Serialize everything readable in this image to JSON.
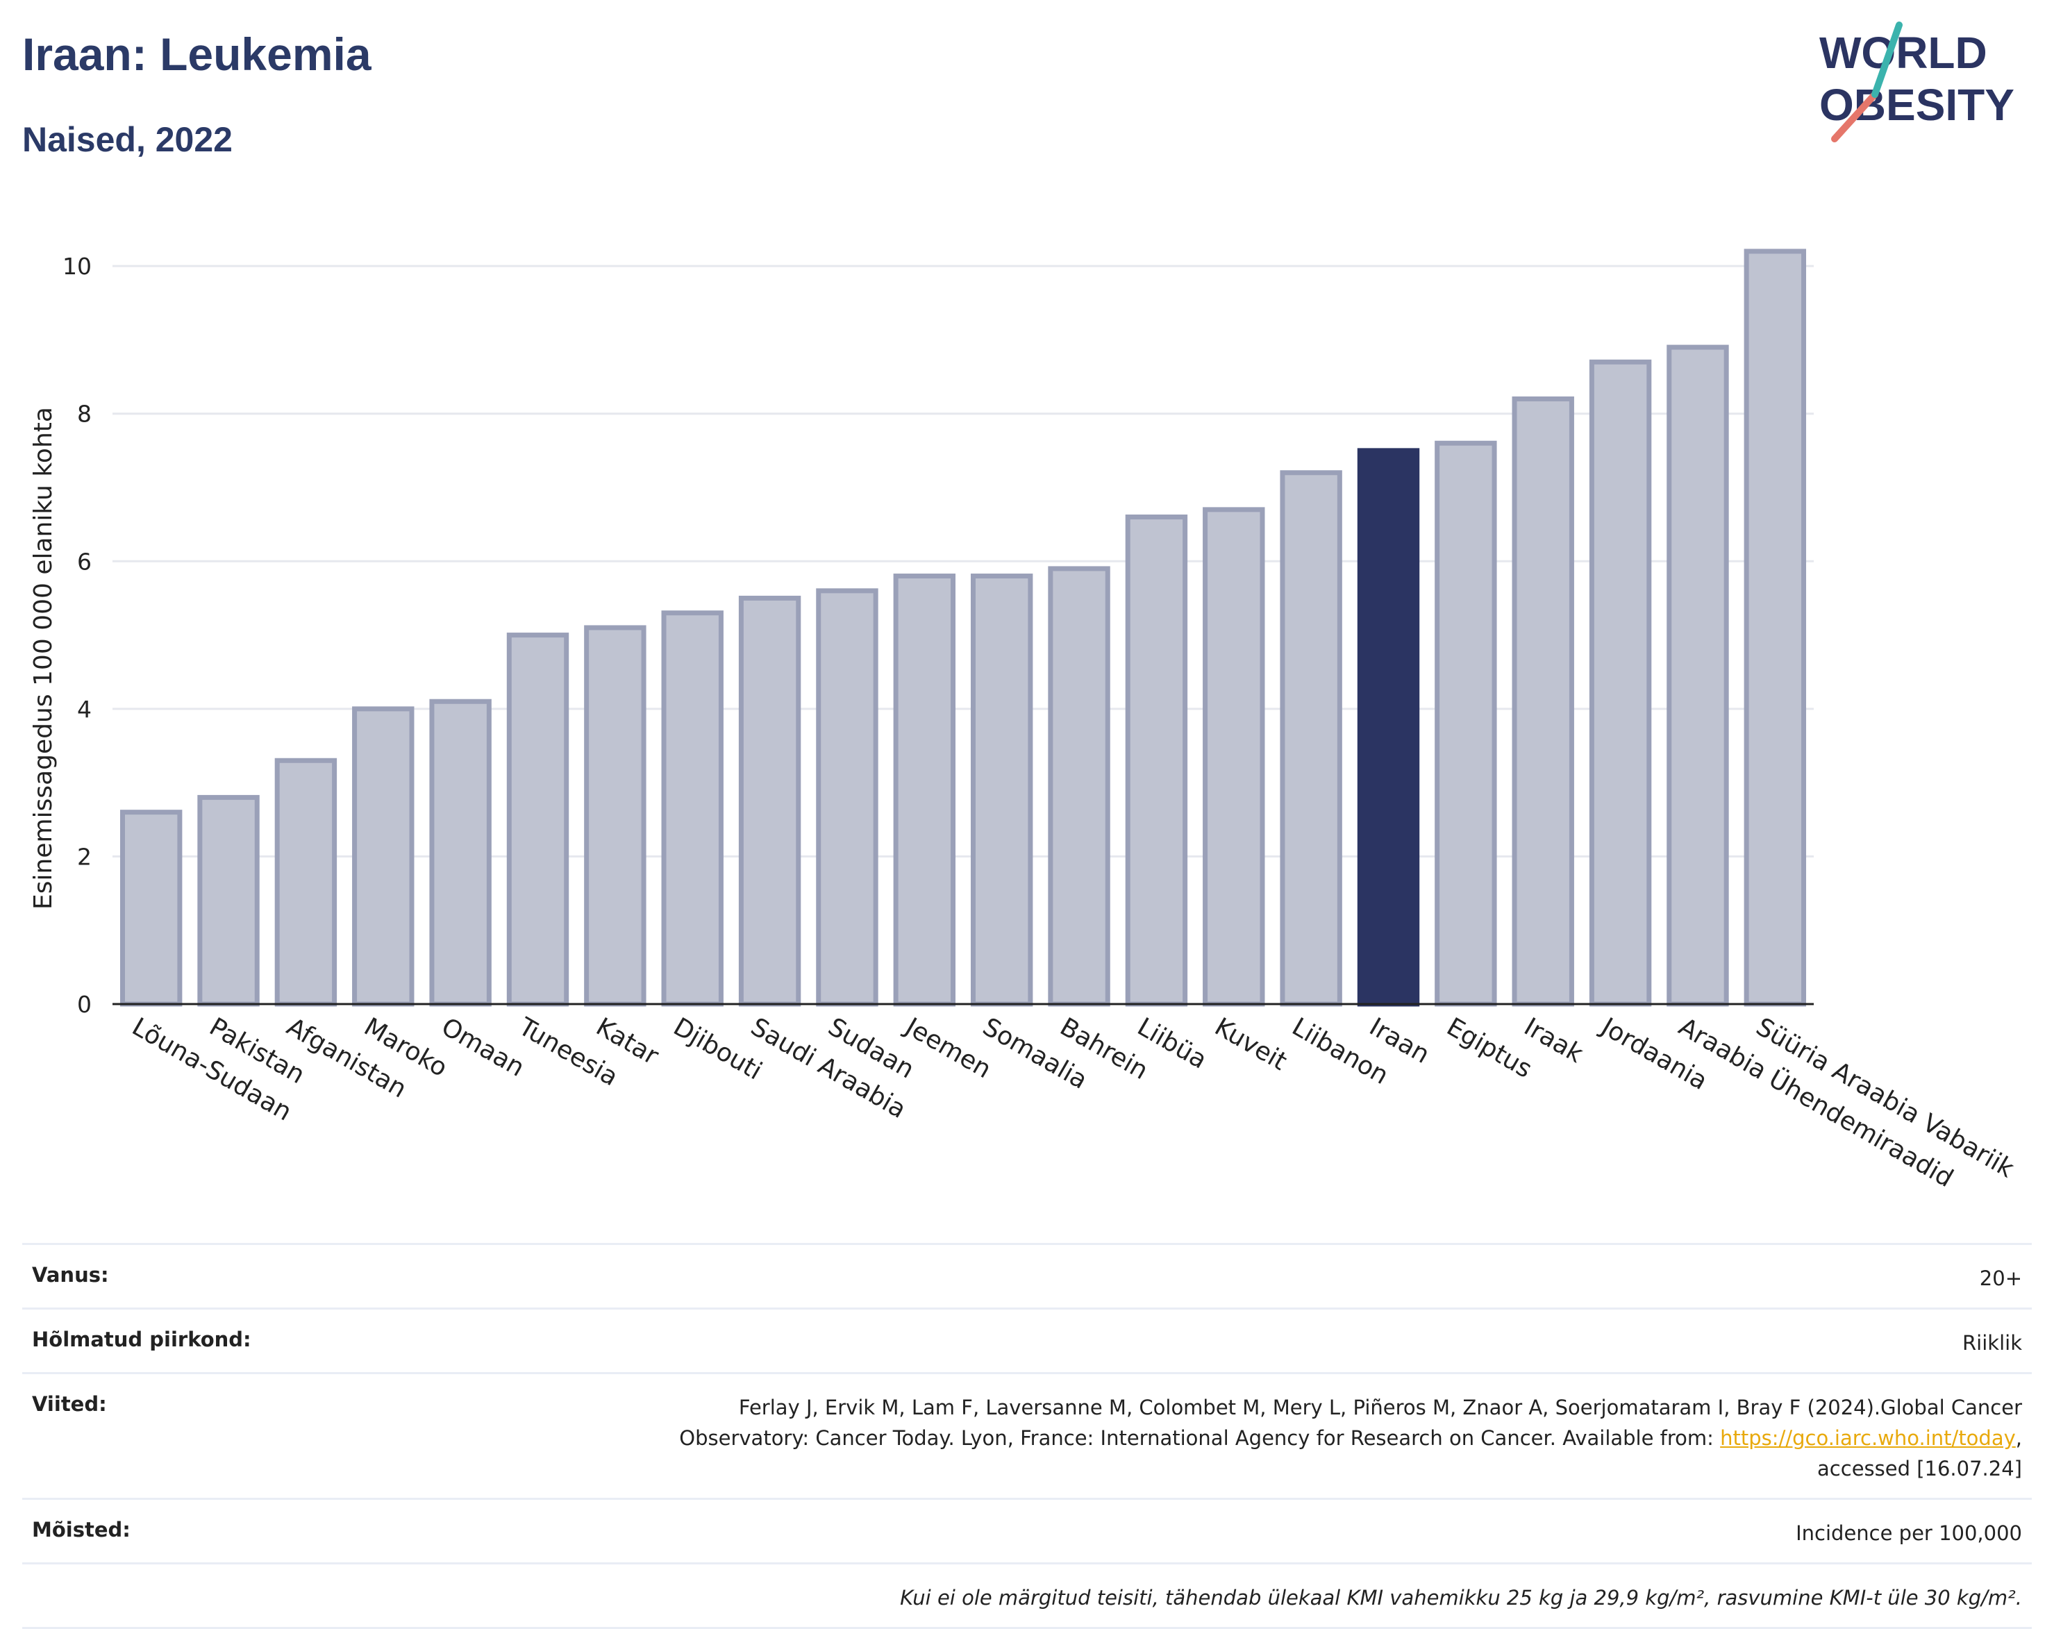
{
  "header": {
    "title": "Iraan: Leukemia",
    "subtitle": "Naised, 2022"
  },
  "logo": {
    "line1": "WORLD",
    "line2": "OBESITY"
  },
  "chart_data": {
    "type": "bar",
    "categories": [
      "Lõuna-Sudaan",
      "Pakistan",
      "Afganistan",
      "Maroko",
      "Omaan",
      "Tuneesia",
      "Katar",
      "Djibouti",
      "Saudi Araabia",
      "Sudaan",
      "Jeemen",
      "Somaalia",
      "Bahrein",
      "Liibüa",
      "Kuveit",
      "Liibanon",
      "Iraan",
      "Egiptus",
      "Iraak",
      "Jordaania",
      "Araabia Ühendemiraadid",
      "Süüria Araabia Vabariik"
    ],
    "values": [
      2.6,
      2.8,
      3.3,
      4.0,
      4.1,
      5.0,
      5.1,
      5.3,
      5.5,
      5.6,
      5.8,
      5.8,
      5.9,
      6.6,
      6.7,
      7.2,
      7.5,
      7.6,
      8.2,
      8.7,
      8.9,
      10.2
    ],
    "highlight": "Iraan",
    "ylabel": "Esinemissagedus 100 000 elaniku kohta",
    "xlabel": "",
    "ylim": [
      0,
      10.5
    ],
    "yticks": [
      0,
      2,
      4,
      6,
      8,
      10
    ],
    "grid": true,
    "colors": {
      "bar": "#bfc3d1",
      "bar_border": "#9aa0b8",
      "highlight": "#2b3462",
      "grid": "#e6e8ee"
    }
  },
  "meta": {
    "age_label": "Vanus:",
    "age_value": "20+",
    "region_label": "Hõlmatud piirkond:",
    "region_value": "Riiklik",
    "refs_label": "Viited:",
    "refs_line1": "Ferlay J, Ervik M, Lam F, Laversanne M, Colombet M, Mery L, Piñeros M, Znaor A, Soerjomataram I, Bray F (2024).Global Cancer",
    "refs_line2": "Observatory: Cancer Today. Lyon, France: International Agency for Research on Cancer. Available from: ",
    "refs_link": "https://gco.iarc.who.int/today",
    "refs_line2_end": ",",
    "refs_line3": "accessed [16.07.24]",
    "defs_label": "Mõisted:",
    "defs_value": "Incidence per 100,000",
    "note": "Kui ei ole märgitud teisiti, tähendab ülekaal KMI vahemikku 25 kg ja 29,9 kg/m², rasvumine KMI-t üle 30 kg/m²."
  }
}
